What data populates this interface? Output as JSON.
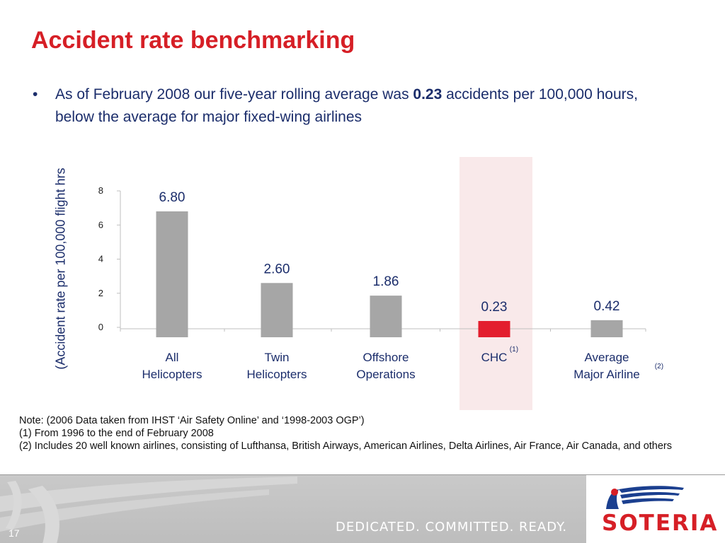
{
  "slide": {
    "title": "Accident rate benchmarking",
    "bullet_prefix": "As of February 2008 our five-year rolling average was ",
    "bullet_value": "0.23",
    "bullet_suffix": " accidents per 100,000 hours, below the average for major fixed-wing airlines"
  },
  "chart_data": {
    "type": "bar",
    "categories": [
      [
        "All",
        "Helicopters"
      ],
      [
        "Twin",
        "Helicopters"
      ],
      [
        "Offshore",
        "Operations"
      ],
      [
        "CHC"
      ],
      [
        "Average",
        "Major Airline"
      ]
    ],
    "category_superscripts": [
      "",
      "",
      "",
      "(1)",
      "(2)"
    ],
    "values": [
      6.8,
      2.6,
      1.86,
      0.23,
      0.42
    ],
    "data_labels": [
      "6.80",
      "2.60",
      "1.86",
      "0.23",
      "0.42"
    ],
    "ylabel": "(Accident rate per 100,000 flight hrs",
    "yticks": [
      "0",
      "2",
      "4",
      "6",
      "8"
    ],
    "ylim": [
      0,
      8
    ],
    "highlight_category": "CHC",
    "colors": {
      "bar": "#a6a6a6",
      "highlight_bar": "#e31e2e",
      "highlight_band": "#f9e9ea",
      "axis": "#bfbfbf",
      "label": "#1b2d6b"
    }
  },
  "notes": {
    "note": "Note: (2006 Data taken from IHST  ‘Air Safety Online’ and ‘1998-2003 OGP’)",
    "n1": "(1)  From 1996 to the end of February 2008",
    "n2": "(2)  Includes 20 well known airlines, consisting of Lufthansa, British Airways, American Airlines, Delta Airlines, Air France, Air Canada, and others"
  },
  "footer": {
    "page_number": "17",
    "tagline": "DEDICATED.  COMMITTED.  READY.",
    "logo_text": "SOTERIA",
    "logo_icon": "winged-figure-icon"
  }
}
